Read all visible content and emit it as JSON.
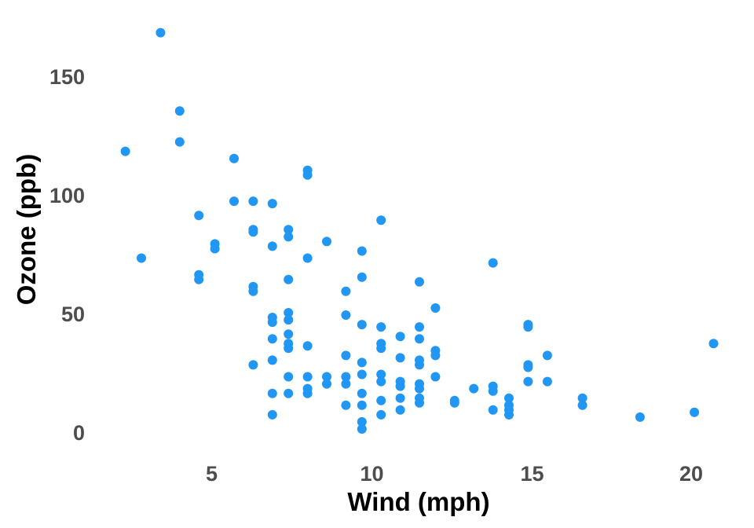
{
  "chart_data": {
    "type": "scatter",
    "title": "",
    "xlabel": "Wind (mph)",
    "ylabel": "Ozone (ppb)",
    "xlim": [
      2.3,
      20.7
    ],
    "ylim": [
      0,
      168
    ],
    "xticks": [
      "5",
      "10",
      "15",
      "20"
    ],
    "yticks": [
      "0",
      "50",
      "100",
      "150"
    ],
    "grid": false,
    "point_color": "#2196F3",
    "series": [
      {
        "points": [
          [
            3.4,
            168
          ],
          [
            2.3,
            118
          ],
          [
            2.8,
            73
          ],
          [
            4.0,
            135
          ],
          [
            4.0,
            122
          ],
          [
            4.6,
            91
          ],
          [
            4.6,
            66
          ],
          [
            4.6,
            64
          ],
          [
            5.1,
            79
          ],
          [
            5.1,
            77
          ],
          [
            5.7,
            115
          ],
          [
            5.7,
            97
          ],
          [
            6.3,
            97
          ],
          [
            6.3,
            85
          ],
          [
            6.3,
            84
          ],
          [
            6.3,
            61
          ],
          [
            6.3,
            59
          ],
          [
            6.3,
            28
          ],
          [
            6.9,
            96
          ],
          [
            6.9,
            78
          ],
          [
            6.9,
            48
          ],
          [
            6.9,
            46
          ],
          [
            6.9,
            39
          ],
          [
            6.9,
            30
          ],
          [
            6.9,
            16
          ],
          [
            6.9,
            7
          ],
          [
            7.4,
            85
          ],
          [
            7.4,
            82
          ],
          [
            7.4,
            64
          ],
          [
            7.4,
            50
          ],
          [
            7.4,
            47
          ],
          [
            7.4,
            41
          ],
          [
            7.4,
            37
          ],
          [
            7.4,
            35
          ],
          [
            7.4,
            23
          ],
          [
            7.4,
            16
          ],
          [
            8.0,
            110
          ],
          [
            8.0,
            108
          ],
          [
            8.0,
            73
          ],
          [
            8.0,
            36
          ],
          [
            8.0,
            23
          ],
          [
            8.0,
            18
          ],
          [
            8.0,
            16
          ],
          [
            8.6,
            80
          ],
          [
            8.6,
            23
          ],
          [
            8.6,
            20
          ],
          [
            9.2,
            59
          ],
          [
            9.2,
            49
          ],
          [
            9.2,
            32
          ],
          [
            9.2,
            23
          ],
          [
            9.2,
            20
          ],
          [
            9.2,
            11
          ],
          [
            9.7,
            76
          ],
          [
            9.7,
            65
          ],
          [
            9.7,
            45
          ],
          [
            9.7,
            29
          ],
          [
            9.7,
            24
          ],
          [
            9.7,
            16
          ],
          [
            9.7,
            11
          ],
          [
            9.7,
            4
          ],
          [
            9.7,
            1
          ],
          [
            10.3,
            89
          ],
          [
            10.3,
            44
          ],
          [
            10.3,
            37
          ],
          [
            10.3,
            35
          ],
          [
            10.3,
            24
          ],
          [
            10.3,
            21
          ],
          [
            10.3,
            13
          ],
          [
            10.3,
            7
          ],
          [
            10.9,
            40
          ],
          [
            10.9,
            31
          ],
          [
            10.9,
            21
          ],
          [
            10.9,
            19
          ],
          [
            10.9,
            14
          ],
          [
            10.9,
            9
          ],
          [
            11.5,
            63
          ],
          [
            11.5,
            44
          ],
          [
            11.5,
            39
          ],
          [
            11.5,
            30
          ],
          [
            11.5,
            28
          ],
          [
            11.5,
            20
          ],
          [
            11.5,
            18
          ],
          [
            11.5,
            14
          ],
          [
            11.5,
            12
          ],
          [
            12.0,
            52
          ],
          [
            12.0,
            34
          ],
          [
            12.0,
            32
          ],
          [
            12.0,
            23
          ],
          [
            12.6,
            13
          ],
          [
            12.6,
            12
          ],
          [
            13.2,
            18
          ],
          [
            13.8,
            71
          ],
          [
            13.8,
            19
          ],
          [
            13.8,
            17
          ],
          [
            13.8,
            9
          ],
          [
            14.3,
            14
          ],
          [
            14.3,
            11
          ],
          [
            14.3,
            9
          ],
          [
            14.3,
            7
          ],
          [
            14.9,
            45
          ],
          [
            14.9,
            44
          ],
          [
            14.9,
            28
          ],
          [
            14.9,
            27
          ],
          [
            14.9,
            21
          ],
          [
            15.5,
            32
          ],
          [
            15.5,
            21
          ],
          [
            16.6,
            14
          ],
          [
            16.6,
            11
          ],
          [
            18.4,
            6
          ],
          [
            20.1,
            8
          ],
          [
            20.7,
            37
          ]
        ]
      }
    ]
  }
}
